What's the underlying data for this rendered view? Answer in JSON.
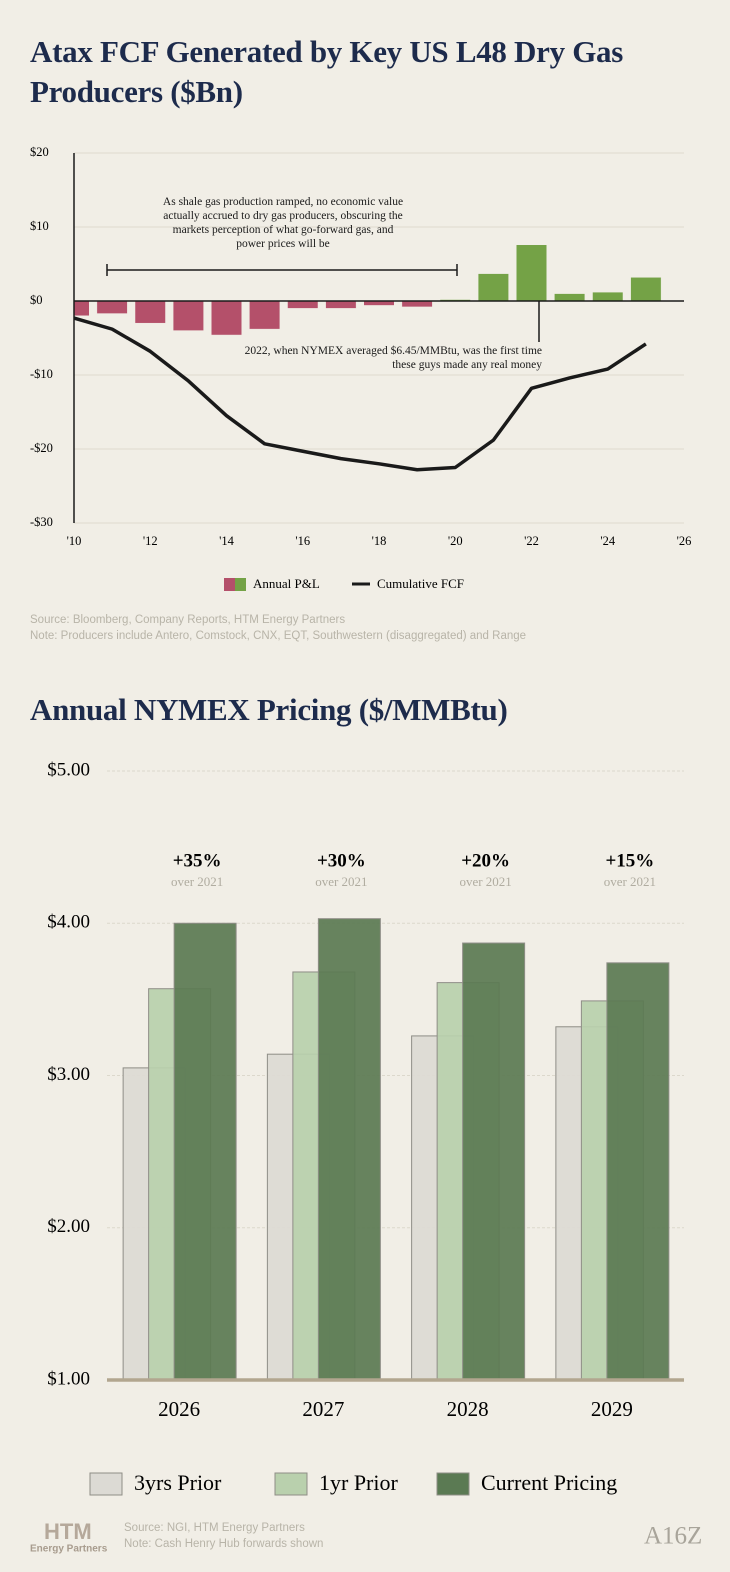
{
  "chart_data": [
    {
      "type": "bar",
      "title": "Atax FCF Generated by Key US L48 Dry Gas Producers ($Bn)",
      "x": [
        2010,
        2011,
        2012,
        2013,
        2014,
        2015,
        2016,
        2017,
        2018,
        2019,
        2020,
        2021,
        2022,
        2023,
        2024,
        2025
      ],
      "series": [
        {
          "name": "Annual P&L",
          "type": "bar",
          "colors": [
            "#b4506a",
            "#74a246"
          ],
          "values": [
            -2,
            -1.7,
            -3,
            -4,
            -4.6,
            -3.8,
            -1,
            -1,
            -0.6,
            -0.8,
            0.2,
            3.7,
            7.6,
            1,
            1.2,
            3.2
          ]
        },
        {
          "name": "Cumulative FCF",
          "type": "line",
          "color": "#1a1a1a",
          "values": [
            -2.3,
            -3.8,
            -6.8,
            -10.8,
            -15.5,
            -19.3,
            -20.3,
            -21.3,
            -22,
            -22.8,
            -22.5,
            -18.8,
            -11.8,
            -10.4,
            -9.2,
            -5.8
          ]
        }
      ],
      "xlim": [
        2010,
        2026
      ],
      "xticks": [
        {
          "value": 2010,
          "label": "'10"
        },
        {
          "value": 2012,
          "label": "'12"
        },
        {
          "value": 2014,
          "label": "'14"
        },
        {
          "value": 2016,
          "label": "'16"
        },
        {
          "value": 2018,
          "label": "'18"
        },
        {
          "value": 2020,
          "label": "'20"
        },
        {
          "value": 2022,
          "label": "'22"
        },
        {
          "value": 2024,
          "label": "'24"
        },
        {
          "value": 2026,
          "label": "'26"
        }
      ],
      "ylim": [
        -30,
        20
      ],
      "yticks": [
        {
          "value": 20,
          "label": "$20"
        },
        {
          "value": 10,
          "label": "$10"
        },
        {
          "value": 0,
          "label": "$0"
        },
        {
          "value": -10,
          "label": "-$10"
        },
        {
          "value": -20,
          "label": "-$20"
        },
        {
          "value": -30,
          "label": "-$30"
        }
      ],
      "grid": true,
      "annotations": [
        "As shale gas production ramped, no economic value actually accrued to dry gas producers, obscuring the markets perception of what go-forward gas, and power prices will be",
        "2022, when NYMEX averaged $6.45/MMBtu, was the first time these guys made any real money"
      ],
      "source": "Source: Bloomberg, Company Reports, HTM Energy Partners",
      "note": "Note: Producers include Antero, Comstock, CNX, EQT, Southwestern (disaggregated) and Range"
    },
    {
      "type": "grouped-bar",
      "title": "Annual NYMEX Pricing ($/MMBtu)",
      "categories": [
        "2026",
        "2027",
        "2028",
        "2029"
      ],
      "series": [
        {
          "name": "3yrs Prior",
          "color": "#dcdad4",
          "values": [
            3.05,
            3.14,
            3.26,
            3.32
          ]
        },
        {
          "name": "1yr Prior",
          "color": "#b9d0ad",
          "values": [
            3.57,
            3.68,
            3.61,
            3.49
          ]
        },
        {
          "name": "Current Pricing",
          "color": "#5b7a53",
          "values": [
            4.0,
            4.03,
            3.87,
            3.74
          ]
        }
      ],
      "ylim": [
        1,
        5
      ],
      "yticks": [
        {
          "value": 1,
          "label": "$1.00"
        },
        {
          "value": 2,
          "label": "$2.00"
        },
        {
          "value": 3,
          "label": "$3.00"
        },
        {
          "value": 4,
          "label": "$4.00"
        },
        {
          "value": 5,
          "label": "$5.00"
        }
      ],
      "grid": true,
      "annotations": [
        {
          "label": "+35%",
          "sublabel": "over 2021"
        },
        {
          "label": "+30%",
          "sublabel": "over 2021"
        },
        {
          "label": "+20%",
          "sublabel": "over 2021"
        },
        {
          "label": "+15%",
          "sublabel": "over 2021"
        }
      ],
      "source": "Source: NGI, HTM Energy Partners",
      "note": "Note: Cash Henry Hub forwards shown"
    }
  ],
  "logos": {
    "htm": "HTM",
    "htm_sub": "Energy Partners",
    "a16z": "A16Z"
  }
}
